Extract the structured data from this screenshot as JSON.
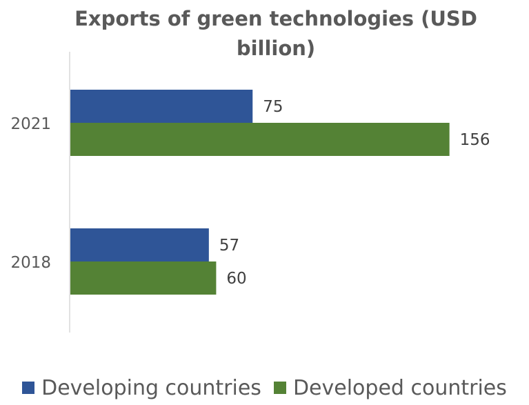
{
  "chart_data": {
    "type": "bar",
    "orientation": "horizontal",
    "title": "Exports of green technologies (USD billion)",
    "categories": [
      "2021",
      "2018"
    ],
    "series": [
      {
        "name": "Developing countries",
        "color": "#2F5597",
        "values": [
          75,
          57
        ]
      },
      {
        "name": "Developed countries",
        "color": "#548235",
        "values": [
          156,
          60
        ]
      }
    ],
    "xlim": [
      0,
      170
    ],
    "data_labels": true,
    "grid": false,
    "legend_position": "bottom"
  }
}
